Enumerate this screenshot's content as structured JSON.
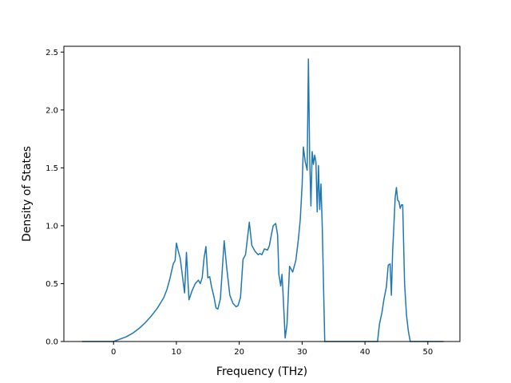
{
  "chart_data": {
    "type": "line",
    "title": "",
    "xlabel": "Frequency (THz)",
    "ylabel": "Density of States",
    "xlim": [
      -7.9,
      55.1
    ],
    "ylim": [
      0.0,
      2.55
    ],
    "xticks": [
      0,
      10,
      20,
      30,
      40,
      50
    ],
    "yticks": [
      0.0,
      0.5,
      1.0,
      1.5,
      2.0,
      2.5
    ],
    "xtick_labels": [
      "0",
      "10",
      "20",
      "30",
      "40",
      "50"
    ],
    "ytick_labels": [
      "0.0",
      "0.5",
      "1.0",
      "1.5",
      "2.0",
      "2.5"
    ],
    "grid": false,
    "line_color": "#1f77b4",
    "series": [
      {
        "x": [
          -5.0,
          0.0,
          1.0,
          2.0,
          3.0,
          4.0,
          5.0,
          6.0,
          7.0,
          8.0,
          8.5,
          9.0,
          9.2,
          9.5,
          9.8,
          10.0,
          10.3,
          10.6,
          11.0,
          11.3,
          11.6,
          12.0,
          12.5,
          13.0,
          13.5,
          13.8,
          14.1,
          14.4,
          14.7,
          15.0,
          15.3,
          15.6,
          16.0,
          16.3,
          16.6,
          17.0,
          17.3,
          17.6,
          18.0,
          18.5,
          19.0,
          19.5,
          19.8,
          20.2,
          20.6,
          21.0,
          21.3,
          21.6,
          22.0,
          22.5,
          23.0,
          23.3,
          23.6,
          24.0,
          24.5,
          24.8,
          25.1,
          25.4,
          25.8,
          26.1,
          26.3,
          26.6,
          26.8,
          27.0,
          27.3,
          27.6,
          28.0,
          28.5,
          29.0,
          29.4,
          29.7,
          30.0,
          30.2,
          30.5,
          30.8,
          31.0,
          31.2,
          31.4,
          31.6,
          31.8,
          32.0,
          32.2,
          32.4,
          32.6,
          32.8,
          33.0,
          33.2,
          33.4,
          33.6,
          33.8,
          34.0,
          34.5,
          38.0,
          41.0,
          42.0,
          42.3,
          42.7,
          43.0,
          43.4,
          43.7,
          44.0,
          44.2,
          44.4,
          44.6,
          44.8,
          45.0,
          45.2,
          45.4,
          45.6,
          45.8,
          46.0,
          46.3,
          46.6,
          46.9,
          47.2,
          47.6,
          48.0,
          48.5,
          52.5
        ],
        "y": [
          0.0,
          0.0,
          0.02,
          0.04,
          0.07,
          0.11,
          0.16,
          0.22,
          0.29,
          0.38,
          0.45,
          0.55,
          0.6,
          0.67,
          0.7,
          0.85,
          0.78,
          0.72,
          0.55,
          0.42,
          0.77,
          0.36,
          0.44,
          0.5,
          0.53,
          0.5,
          0.55,
          0.72,
          0.82,
          0.55,
          0.56,
          0.47,
          0.38,
          0.29,
          0.28,
          0.37,
          0.62,
          0.87,
          0.64,
          0.4,
          0.33,
          0.3,
          0.31,
          0.38,
          0.71,
          0.75,
          0.89,
          1.03,
          0.83,
          0.78,
          0.75,
          0.76,
          0.75,
          0.8,
          0.79,
          0.83,
          0.92,
          1.0,
          1.02,
          0.92,
          0.58,
          0.48,
          0.58,
          0.38,
          0.03,
          0.15,
          0.65,
          0.6,
          0.7,
          0.88,
          1.05,
          1.35,
          1.68,
          1.55,
          1.48,
          2.44,
          1.6,
          1.17,
          1.64,
          1.53,
          1.61,
          1.55,
          1.12,
          1.52,
          1.14,
          1.36,
          1.0,
          0.5,
          0.0,
          0.0,
          0.0,
          0.0,
          0.0,
          0.0,
          0.0,
          0.15,
          0.25,
          0.36,
          0.47,
          0.66,
          0.67,
          0.4,
          0.78,
          1.0,
          1.24,
          1.33,
          1.22,
          1.21,
          1.15,
          1.18,
          1.18,
          0.5,
          0.23,
          0.09,
          0.0,
          0.0,
          0.0,
          0.0,
          0.0
        ]
      }
    ]
  }
}
